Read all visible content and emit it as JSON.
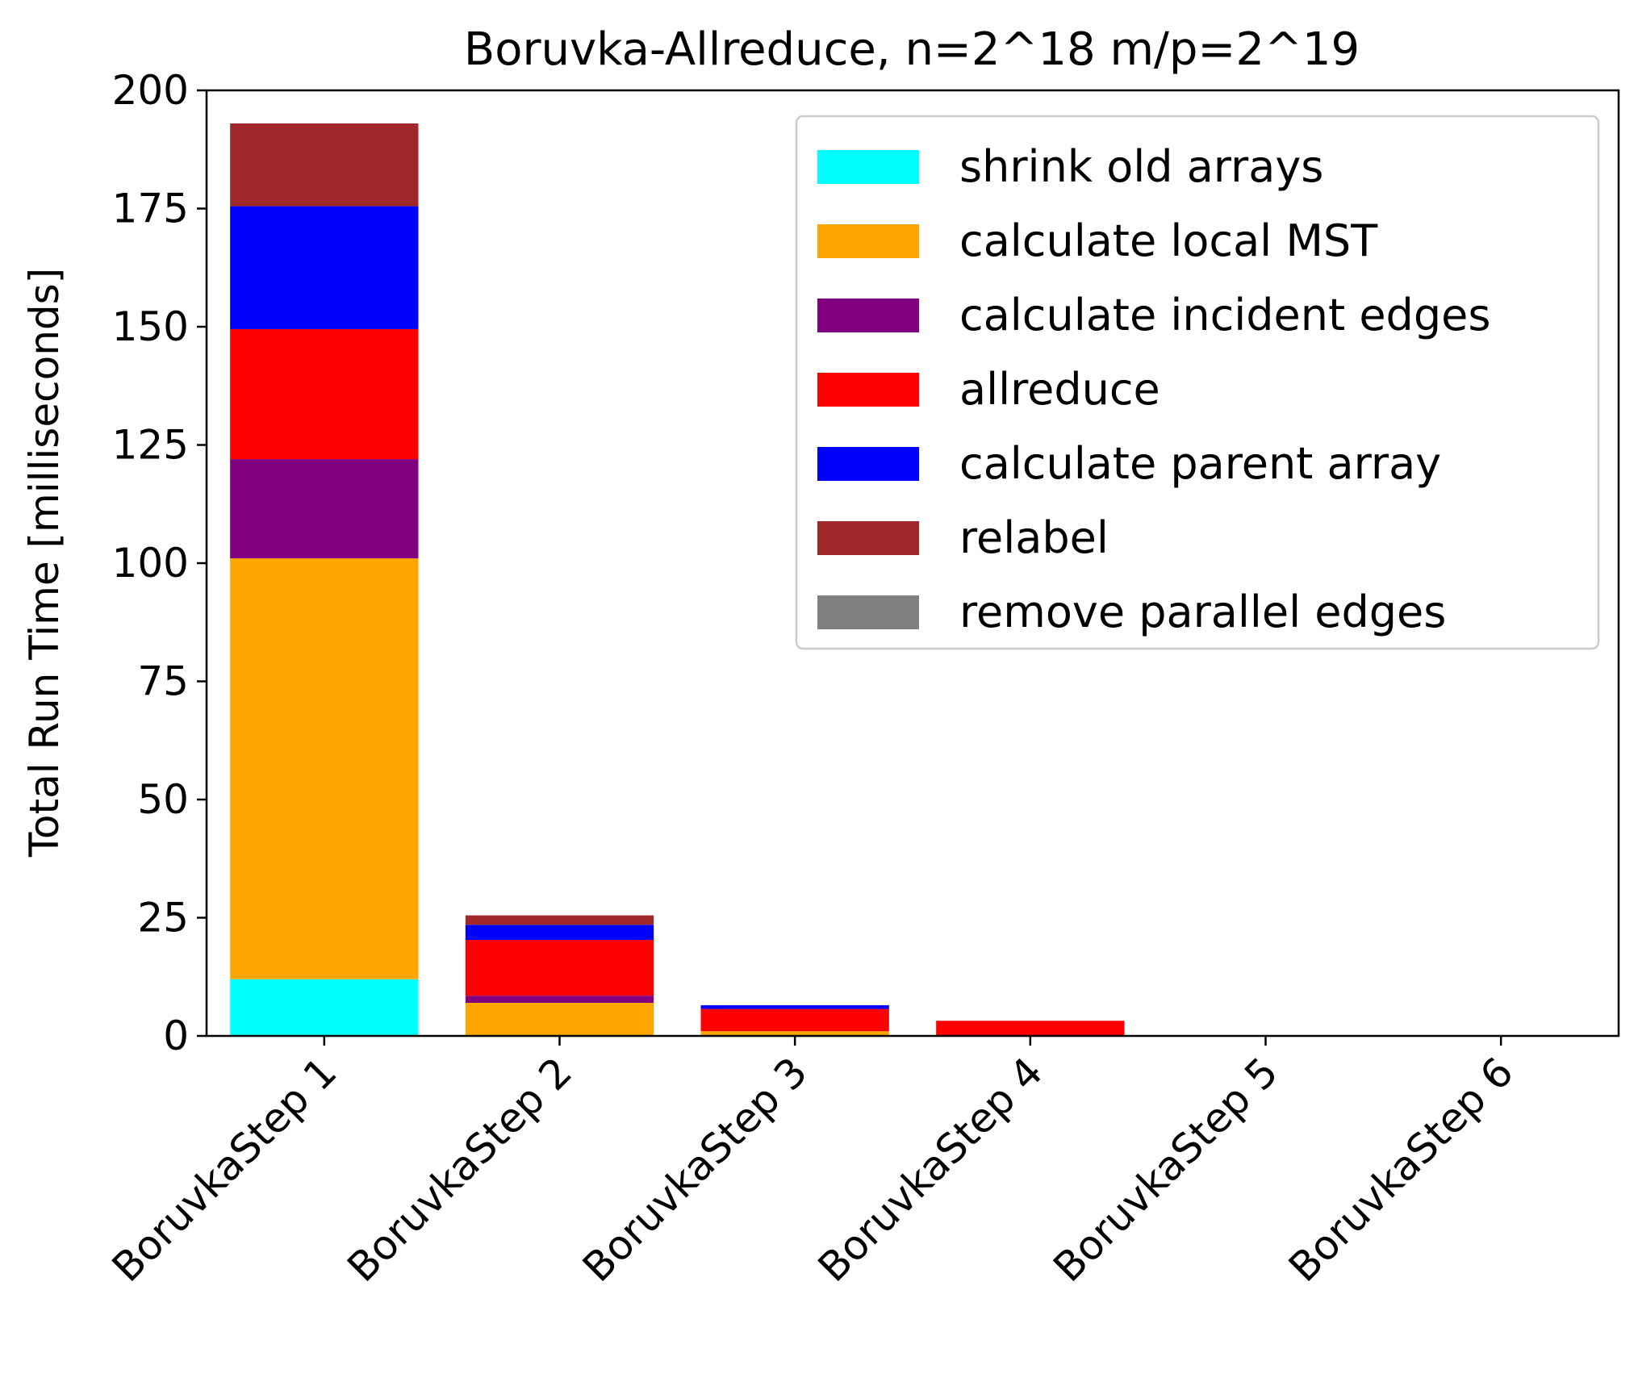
{
  "chart_data": {
    "type": "bar",
    "stacked": true,
    "title": "Boruvka-Allreduce, n=2^18 m/p=2^19",
    "xlabel": "",
    "ylabel": "Total Run Time [milliseconds]",
    "ylim": [
      0,
      200
    ],
    "yticks": [
      0,
      25,
      50,
      75,
      100,
      125,
      150,
      175,
      200
    ],
    "grid": false,
    "legend_position": "top-right",
    "categories": [
      "BoruvkaStep 1",
      "BoruvkaStep 2",
      "BoruvkaStep 3",
      "BoruvkaStep 4",
      "BoruvkaStep 5",
      "BoruvkaStep 6"
    ],
    "series": [
      {
        "name": "shrink old arrays",
        "color": "#00ffff",
        "values": [
          12,
          0,
          0,
          0,
          0,
          0
        ]
      },
      {
        "name": "calculate local MST",
        "color": "#ffa500",
        "values": [
          89,
          7,
          1,
          0,
          0,
          0
        ]
      },
      {
        "name": "calculate incident edges",
        "color": "#800080",
        "values": [
          21,
          1.5,
          0,
          0,
          0,
          0
        ]
      },
      {
        "name": "allreduce",
        "color": "#ff0000",
        "values": [
          27.5,
          11.8,
          4.7,
          3.2,
          0,
          0
        ]
      },
      {
        "name": "calculate parent array",
        "color": "#0000ff",
        "values": [
          26,
          3.2,
          0.8,
          0,
          0,
          0
        ]
      },
      {
        "name": "relabel",
        "color": "#a0282b",
        "values": [
          17.5,
          2,
          0,
          0,
          0,
          0
        ]
      },
      {
        "name": "remove parallel edges",
        "color": "#808080",
        "values": [
          0,
          0,
          0,
          0,
          0,
          0
        ]
      }
    ]
  }
}
